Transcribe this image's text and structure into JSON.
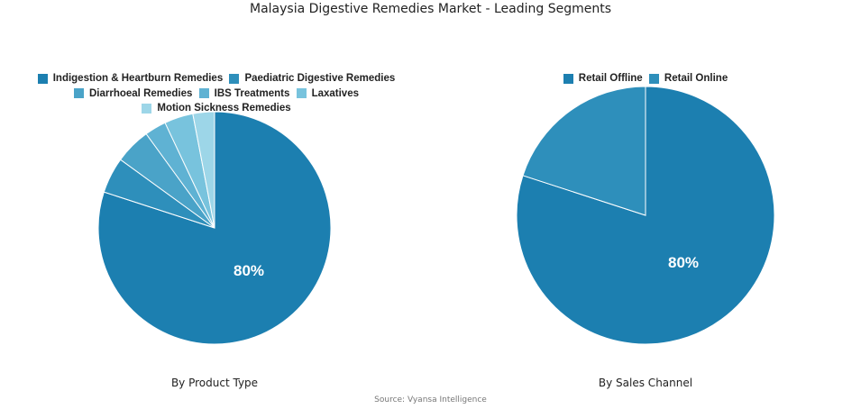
{
  "title": "Malaysia Digestive Remedies Market - Leading Segments",
  "source": "Source: Vyansa Intelligence",
  "chart_data": [
    {
      "type": "pie",
      "caption": "By Product Type",
      "legend_position": "top",
      "slices": [
        {
          "label": "Indigestion & Heartburn Remedies",
          "value": 80,
          "color": "#1c7fb0",
          "display": "80%"
        },
        {
          "label": "Paediatric Digestive Remedies",
          "value": 5,
          "color": "#2e8fbb",
          "display": ""
        },
        {
          "label": "Diarrhoeal Remedies",
          "value": 5,
          "color": "#4aa3c8",
          "display": ""
        },
        {
          "label": "IBS Treatments",
          "value": 3,
          "color": "#5fb2d3",
          "display": ""
        },
        {
          "label": "Laxatives",
          "value": 4,
          "color": "#78c3dd",
          "display": ""
        },
        {
          "label": "Motion Sickness Remedies",
          "value": 3,
          "color": "#9dd6e8",
          "display": ""
        }
      ]
    },
    {
      "type": "pie",
      "caption": "By Sales Channel",
      "legend_position": "top",
      "slices": [
        {
          "label": "Retail Offline",
          "value": 80,
          "color": "#1c7fb0",
          "display": "80%"
        },
        {
          "label": "Retail Online",
          "value": 20,
          "color": "#2e8fbb",
          "display": ""
        }
      ]
    }
  ]
}
